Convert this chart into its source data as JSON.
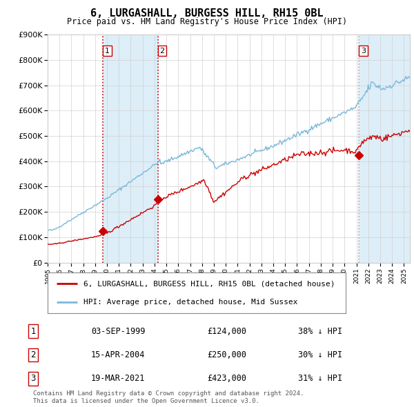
{
  "title": "6, LURGASHALL, BURGESS HILL, RH15 0BL",
  "subtitle": "Price paid vs. HM Land Registry's House Price Index (HPI)",
  "legend_line1": "6, LURGASHALL, BURGESS HILL, RH15 0BL (detached house)",
  "legend_line2": "HPI: Average price, detached house, Mid Sussex",
  "footer_line1": "Contains HM Land Registry data © Crown copyright and database right 2024.",
  "footer_line2": "This data is licensed under the Open Government Licence v3.0.",
  "sale_labels": [
    "1",
    "2",
    "3"
  ],
  "sale_dates_label": [
    "03-SEP-1999",
    "15-APR-2004",
    "19-MAR-2021"
  ],
  "sale_prices_label": [
    "£124,000",
    "£250,000",
    "£423,000"
  ],
  "sale_hpi_label": [
    "38% ↓ HPI",
    "30% ↓ HPI",
    "31% ↓ HPI"
  ],
  "sale_years": [
    1999.67,
    2004.29,
    2021.21
  ],
  "sale_prices": [
    124000,
    250000,
    423000
  ],
  "vline1_x": 1999.67,
  "vline2_x": 2004.29,
  "vline3_x": 2021.21,
  "shade12_x1": 1999.67,
  "shade12_x2": 2004.29,
  "shade3_x1": 2021.21,
  "shade3_x2": 2025.5,
  "hpi_color": "#7ab8d9",
  "price_color": "#cc0000",
  "shade_color": "#ddeef8",
  "vline_color": "#cc0000",
  "vline3_color": "#aaaaaa",
  "background_color": "#ffffff",
  "ylim": [
    0,
    900000
  ],
  "xlim_start": 1995.0,
  "xlim_end": 2025.5,
  "year_ticks": [
    1995,
    1996,
    1997,
    1998,
    1999,
    2000,
    2001,
    2002,
    2003,
    2004,
    2005,
    2006,
    2007,
    2008,
    2009,
    2010,
    2011,
    2012,
    2013,
    2014,
    2015,
    2016,
    2017,
    2018,
    2019,
    2020,
    2021,
    2022,
    2023,
    2024,
    2025
  ]
}
